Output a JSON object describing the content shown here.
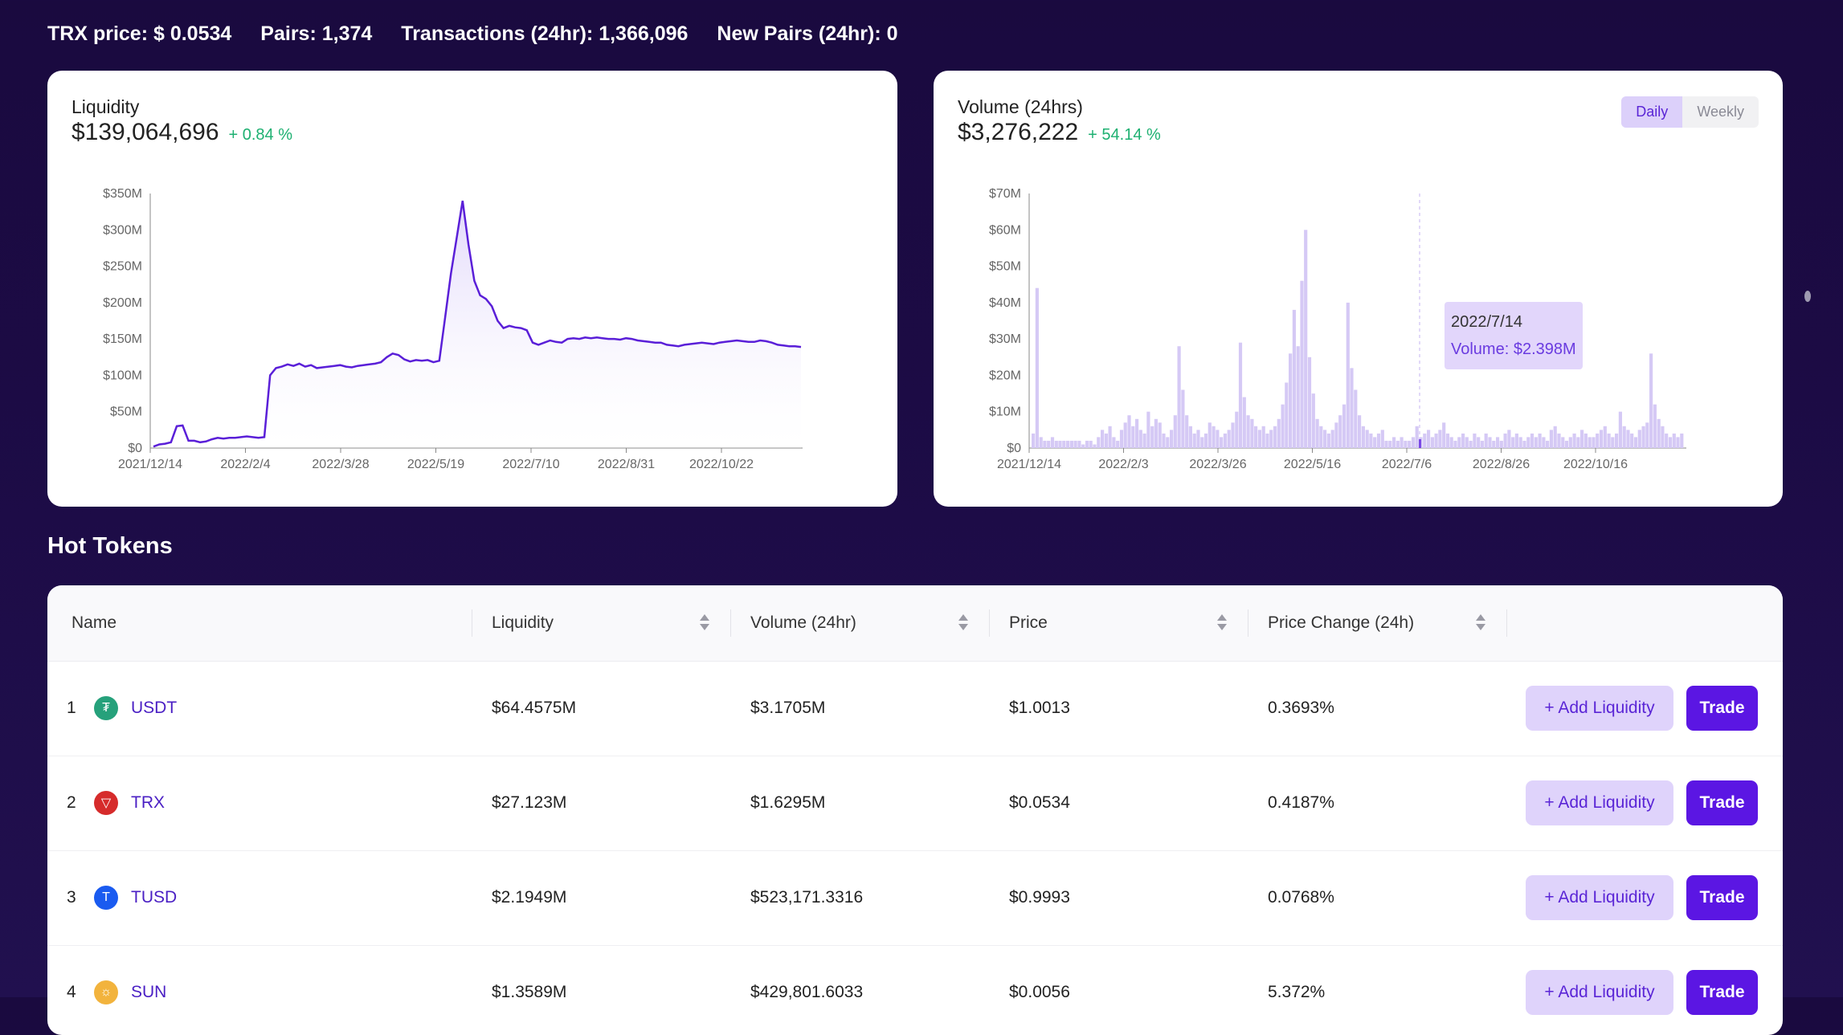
{
  "stats": {
    "trx_price": "TRX price: $ 0.0534",
    "pairs": "Pairs: 1,374",
    "transactions": "Transactions (24hr): 1,366,096",
    "new_pairs": "New Pairs (24hr): 0"
  },
  "liquidity": {
    "label": "Liquidity",
    "value": "$139,064,696",
    "change": "+ 0.84 %"
  },
  "volume": {
    "label": "Volume (24hrs)",
    "value": "$3,276,222",
    "change": "+ 54.14 %",
    "toggle": [
      "Daily",
      "Weekly"
    ],
    "tooltip_date": "2022/7/14",
    "tooltip_value": "Volume: $2.398M"
  },
  "chart_data": [
    {
      "type": "area",
      "title": "Liquidity",
      "ylim": [
        0,
        350
      ],
      "yticks": [
        "$0",
        "$50M",
        "$100M",
        "$150M",
        "$200M",
        "$250M",
        "$300M",
        "$350M"
      ],
      "xticks": [
        "2021/12/14",
        "2022/2/4",
        "2022/3/28",
        "2022/5/19",
        "2022/7/10",
        "2022/8/31",
        "2022/10/22"
      ],
      "series": [
        {
          "values": [
            2,
            5,
            6,
            8,
            30,
            31,
            10,
            10,
            8,
            9,
            12,
            14,
            13,
            14,
            14,
            15,
            16,
            15,
            14,
            15,
            100,
            110,
            112,
            115,
            113,
            116,
            112,
            114,
            110,
            111,
            112,
            113,
            114,
            112,
            111,
            113,
            114,
            115,
            116,
            118,
            125,
            130,
            128,
            122,
            119,
            121,
            120,
            121,
            118,
            120,
            180,
            240,
            290,
            340,
            280,
            230,
            210,
            205,
            195,
            175,
            165,
            168,
            166,
            165,
            162,
            145,
            142,
            145,
            148,
            146,
            145,
            150,
            151,
            150,
            152,
            151,
            152,
            151,
            150,
            150,
            149,
            151,
            150,
            148,
            147,
            146,
            145,
            145,
            142,
            141,
            140,
            142,
            143,
            144,
            145,
            144,
            143,
            145,
            146,
            147,
            148,
            147,
            146,
            146,
            148,
            147,
            145,
            142,
            141,
            140,
            140,
            139
          ]
        }
      ]
    },
    {
      "type": "bar",
      "title": "Volume (24hrs)",
      "ylim": [
        0,
        70
      ],
      "yticks": [
        "$0",
        "$10M",
        "$20M",
        "$30M",
        "$40M",
        "$50M",
        "$60M",
        "$70M"
      ],
      "xticks": [
        "2021/12/14",
        "2022/2/3",
        "2022/3/26",
        "2022/5/16",
        "2022/7/6",
        "2022/8/26",
        "2022/10/16"
      ],
      "series": [
        {
          "values": [
            4,
            44,
            3,
            2,
            2,
            3,
            2,
            2,
            2,
            2,
            2,
            2,
            2,
            1,
            2,
            2,
            1,
            3,
            5,
            4,
            6,
            3,
            2,
            5,
            7,
            9,
            6,
            8,
            5,
            4,
            10,
            6,
            8,
            7,
            4,
            3,
            5,
            9,
            28,
            16,
            9,
            6,
            4,
            5,
            3,
            4,
            7,
            6,
            5,
            3,
            4,
            5,
            7,
            10,
            29,
            14,
            9,
            8,
            6,
            5,
            6,
            4,
            5,
            6,
            8,
            12,
            18,
            26,
            38,
            28,
            46,
            60,
            25,
            15,
            8,
            6,
            5,
            4,
            5,
            7,
            9,
            12,
            40,
            22,
            16,
            9,
            6,
            5,
            4,
            3,
            4,
            5,
            2,
            2,
            3,
            2,
            3,
            2,
            2,
            3,
            6,
            3,
            4,
            5,
            3,
            4,
            5,
            7,
            4,
            3,
            2,
            3,
            4,
            3,
            2,
            4,
            3,
            2,
            4,
            3,
            2,
            3,
            2,
            4,
            5,
            3,
            4,
            3,
            2,
            3,
            4,
            3,
            4,
            3,
            2,
            5,
            6,
            4,
            3,
            2,
            3,
            4,
            3,
            5,
            4,
            3,
            3,
            4,
            5,
            6,
            4,
            3,
            4,
            10,
            6,
            5,
            4,
            3,
            5,
            6,
            7,
            26,
            12,
            8,
            6,
            4,
            3,
            4,
            3,
            4
          ]
        }
      ]
    }
  ],
  "hot_tokens": {
    "title": "Hot Tokens",
    "columns": [
      "Name",
      "Liquidity",
      "Volume (24hr)",
      "Price",
      "Price Change (24h)"
    ],
    "add_label": "+ Add Liquidity",
    "trade_label": "Trade",
    "rows": [
      {
        "rank": "1",
        "name": "USDT",
        "liquidity": "$64.4575M",
        "volume": "$3.1705M",
        "price": "$1.0013",
        "change": "0.3693%",
        "icon_color": "#26a17b",
        "icon_glyph": "₮"
      },
      {
        "rank": "2",
        "name": "TRX",
        "liquidity": "$27.123M",
        "volume": "$1.6295M",
        "price": "$0.0534",
        "change": "0.4187%",
        "icon_color": "#d62b2b",
        "icon_glyph": "▽"
      },
      {
        "rank": "3",
        "name": "TUSD",
        "liquidity": "$2.1949M",
        "volume": "$523,171.3316",
        "price": "$0.9993",
        "change": "0.0768%",
        "icon_color": "#1a5bf0",
        "icon_glyph": "T"
      },
      {
        "rank": "4",
        "name": "SUN",
        "liquidity": "$1.3589M",
        "volume": "$429,801.6033",
        "price": "$0.0056",
        "change": "5.372%",
        "icon_color": "#f2b33d",
        "icon_glyph": "☼"
      }
    ]
  }
}
